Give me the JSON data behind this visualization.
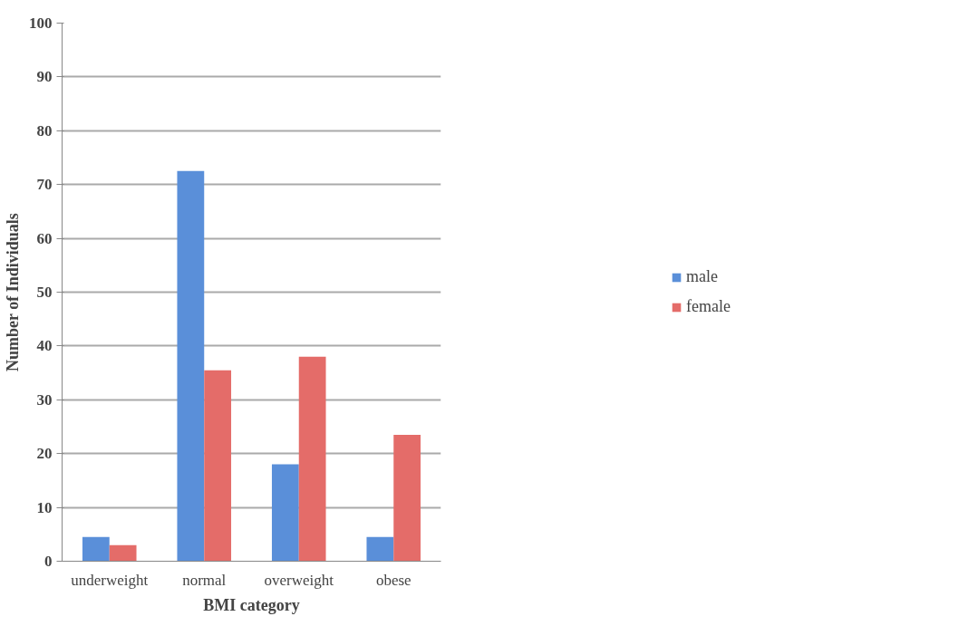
{
  "chart_data": {
    "type": "bar",
    "xlabel": "BMI category",
    "ylabel": "Number of Individuals",
    "categories": [
      "underweight",
      "normal",
      "overweight",
      "obese"
    ],
    "series": [
      {
        "name": "male",
        "color": "#5a8fd9",
        "values": [
          4.5,
          72.5,
          18,
          4.5
        ]
      },
      {
        "name": "female",
        "color": "#e46c69",
        "values": [
          3,
          35.5,
          38,
          23.5
        ]
      }
    ],
    "ylim": [
      0,
      100
    ],
    "yticks": [
      0,
      10,
      20,
      30,
      40,
      50,
      60,
      70,
      80,
      90,
      100
    ],
    "grid": "y",
    "legend": "right"
  }
}
